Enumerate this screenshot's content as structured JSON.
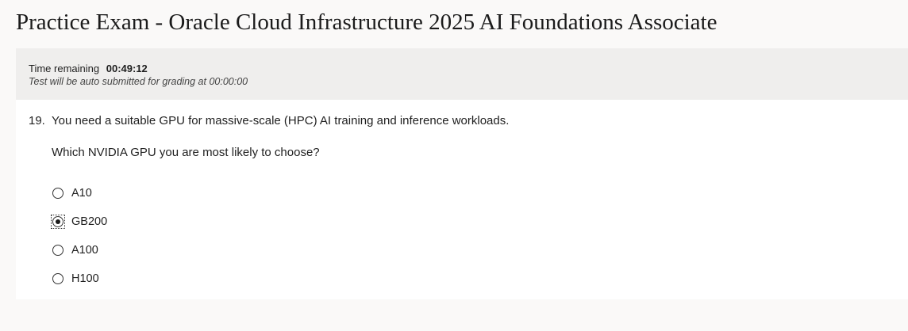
{
  "page": {
    "title": "Practice Exam - Oracle Cloud Infrastructure 2025 AI Foundations Associate"
  },
  "timer": {
    "label": "Time remaining",
    "value": "00:49:12",
    "note": "Test will be auto submitted for grading at 00:00:00"
  },
  "question": {
    "number": "19.",
    "stem": "You need a suitable GPU for massive-scale (HPC) AI training and inference workloads.",
    "prompt": "Which NVIDIA GPU you are most likely to choose?",
    "options": [
      {
        "label": "A10",
        "selected": false
      },
      {
        "label": "GB200",
        "selected": true
      },
      {
        "label": "A100",
        "selected": false
      },
      {
        "label": "H100",
        "selected": false
      }
    ]
  }
}
